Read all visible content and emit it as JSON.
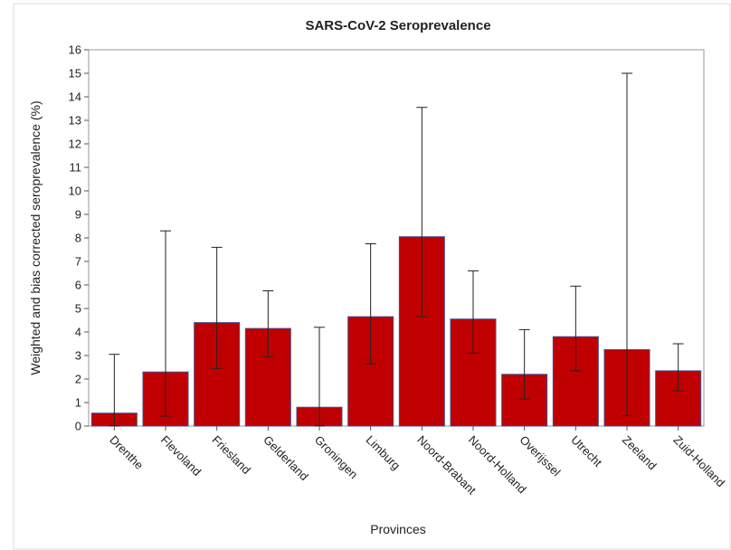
{
  "chart_data": {
    "type": "bar",
    "title": "SARS-CoV-2 Seroprevalence",
    "x_label": "Provinces",
    "y_label": "Weighted and bias corrected seroprevalence (%)",
    "categories": [
      "Drenthe",
      "Flevoland",
      "Friesland",
      "Gelderland",
      "Groningen",
      "Limburg",
      "Noord-Brabant",
      "Noord-Holland",
      "Overijssel",
      "Utrecht",
      "Zeeland",
      "Zuid-Holland"
    ],
    "values": [
      0.55,
      2.3,
      4.4,
      4.15,
      0.8,
      4.65,
      8.05,
      4.55,
      2.2,
      3.8,
      3.25,
      2.35
    ],
    "lower": [
      0,
      0.42,
      2.45,
      2.95,
      0,
      2.65,
      4.65,
      3.1,
      1.15,
      2.35,
      0.45,
      1.5
    ],
    "upper": [
      3.05,
      8.3,
      7.6,
      5.75,
      4.2,
      7.75,
      13.55,
      6.6,
      4.1,
      5.95,
      15.0,
      3.5
    ],
    "color": "#c00000",
    "ylim": [
      0,
      16
    ],
    "yticks": [
      0,
      1,
      2,
      3,
      4,
      5,
      6,
      7,
      8,
      9,
      10,
      11,
      12,
      13,
      14,
      15,
      16
    ]
  }
}
